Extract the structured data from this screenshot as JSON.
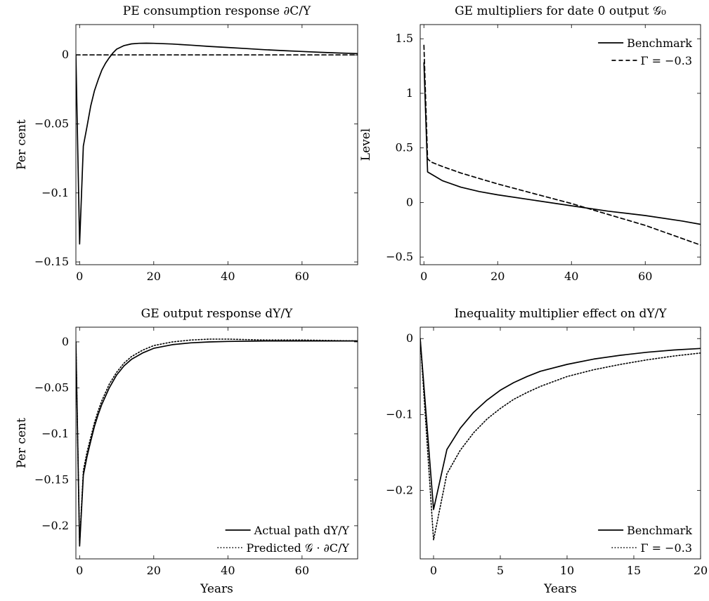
{
  "chart_data": [
    {
      "type": "line",
      "title": "PE consumption response ∂C/Y",
      "ylabel": "Per cent",
      "xlabel": "",
      "xlim": [
        -1,
        75
      ],
      "ylim": [
        -0.152,
        0.022
      ],
      "xticks": [
        0,
        20,
        40,
        60
      ],
      "yticks": [
        0,
        -0.05,
        -0.1,
        -0.15
      ],
      "ytick_labels": [
        "0",
        "−0.05",
        "−0.1",
        "−0.15"
      ],
      "legend": null,
      "series": [
        {
          "style": "solid",
          "x": [
            -1,
            0,
            1,
            2,
            3,
            4,
            5,
            6,
            7,
            8,
            9,
            10,
            12,
            14,
            16,
            18,
            20,
            25,
            30,
            35,
            40,
            45,
            50,
            55,
            60,
            65,
            70,
            75
          ],
          "y": [
            0,
            -0.137,
            -0.066,
            -0.052,
            -0.037,
            -0.026,
            -0.018,
            -0.011,
            -0.006,
            -0.002,
            0.0015,
            0.0042,
            0.0068,
            0.008,
            0.0084,
            0.0085,
            0.0084,
            0.0079,
            0.0071,
            0.0062,
            0.0054,
            0.0046,
            0.0038,
            0.0031,
            0.0025,
            0.0019,
            0.0014,
            0.001
          ]
        },
        {
          "style": "dashed",
          "x": [
            -1,
            75
          ],
          "y": [
            0,
            0
          ]
        }
      ]
    },
    {
      "type": "line",
      "title": "GE multipliers for date 0 output 𝒢₀",
      "ylabel": "Level",
      "xlabel": "",
      "xlim": [
        -1,
        75
      ],
      "ylim": [
        -0.57,
        1.63
      ],
      "xticks": [
        0,
        20,
        40,
        60
      ],
      "yticks": [
        1.5,
        1,
        0.5,
        0,
        -0.5
      ],
      "ytick_labels": [
        "1.5",
        "1",
        "0.5",
        "0",
        "−0.5"
      ],
      "legend": "top-right",
      "series": [
        {
          "name": "Benchmark",
          "style": "solid",
          "x": [
            0,
            1,
            2,
            5,
            10,
            15,
            20,
            30,
            40,
            50,
            60,
            70,
            75
          ],
          "y": [
            1.28,
            0.28,
            0.26,
            0.2,
            0.14,
            0.1,
            0.07,
            0.02,
            -0.03,
            -0.08,
            -0.12,
            -0.17,
            -0.2
          ]
        },
        {
          "name": "Γ = −0.3",
          "style": "dashed",
          "x": [
            0,
            1,
            2,
            5,
            10,
            15,
            20,
            30,
            40,
            45,
            50,
            60,
            70,
            75
          ],
          "y": [
            1.44,
            0.4,
            0.37,
            0.33,
            0.27,
            0.22,
            0.17,
            0.08,
            -0.01,
            -0.06,
            -0.11,
            -0.21,
            -0.33,
            -0.39
          ]
        }
      ]
    },
    {
      "type": "line",
      "title": "GE output response dY/Y",
      "ylabel": "Per cent",
      "xlabel": "Years",
      "xlim": [
        -1,
        75
      ],
      "ylim": [
        -0.236,
        0.016
      ],
      "xticks": [
        0,
        20,
        40,
        60
      ],
      "yticks": [
        0,
        -0.05,
        -0.1,
        -0.15,
        -0.2
      ],
      "ytick_labels": [
        "0",
        "−0.05",
        "−0.1",
        "−0.15",
        "−0.2"
      ],
      "legend": "bottom-right",
      "series": [
        {
          "name": "Actual path dY/Y",
          "style": "solid",
          "x": [
            -1,
            0,
            1,
            2,
            3,
            4,
            5,
            6,
            8,
            10,
            12,
            14,
            17,
            20,
            25,
            30,
            35,
            40,
            50,
            60,
            75
          ],
          "y": [
            0,
            -0.222,
            -0.145,
            -0.125,
            -0.108,
            -0.092,
            -0.079,
            -0.068,
            -0.05,
            -0.036,
            -0.026,
            -0.019,
            -0.012,
            -0.007,
            -0.003,
            -0.001,
            0,
            0.0005,
            0.001,
            0.001,
            0.001
          ]
        },
        {
          "name": "Predicted 𝒢 · ∂C/Y",
          "style": "dotted",
          "x": [
            -1,
            0,
            1,
            2,
            3,
            4,
            5,
            6,
            8,
            10,
            12,
            14,
            17,
            20,
            25,
            30,
            35,
            40,
            50,
            60,
            75
          ],
          "y": [
            0,
            -0.22,
            -0.14,
            -0.12,
            -0.104,
            -0.088,
            -0.075,
            -0.064,
            -0.046,
            -0.033,
            -0.023,
            -0.016,
            -0.009,
            -0.004,
            0,
            0.002,
            0.003,
            0.003,
            0.002,
            0.002,
            0.001
          ]
        }
      ]
    },
    {
      "type": "line",
      "title": "Inequality multiplier effect on dY/Y",
      "ylabel": "",
      "xlabel": "Years",
      "xlim": [
        -1,
        20
      ],
      "ylim": [
        -0.29,
        0.015
      ],
      "xticks": [
        0,
        5,
        10,
        15,
        20
      ],
      "yticks": [
        0,
        -0.1,
        -0.2
      ],
      "ytick_labels": [
        "0",
        "−0.1",
        "−0.2"
      ],
      "legend": "bottom-right",
      "series": [
        {
          "name": "Benchmark",
          "style": "solid",
          "x": [
            -1,
            0,
            1,
            2,
            3,
            4,
            5,
            6,
            7,
            8,
            10,
            12,
            14,
            16,
            18,
            20
          ],
          "y": [
            0,
            -0.225,
            -0.146,
            -0.118,
            -0.097,
            -0.081,
            -0.068,
            -0.058,
            -0.05,
            -0.043,
            -0.034,
            -0.027,
            -0.022,
            -0.018,
            -0.015,
            -0.013
          ]
        },
        {
          "name": "Γ = −0.3",
          "style": "dotted",
          "x": [
            -1,
            0,
            1,
            2,
            3,
            4,
            5,
            6,
            7,
            8,
            10,
            12,
            14,
            16,
            18,
            20
          ],
          "y": [
            0,
            -0.265,
            -0.178,
            -0.147,
            -0.124,
            -0.106,
            -0.092,
            -0.08,
            -0.071,
            -0.063,
            -0.05,
            -0.041,
            -0.034,
            -0.028,
            -0.023,
            -0.019
          ]
        }
      ]
    }
  ]
}
